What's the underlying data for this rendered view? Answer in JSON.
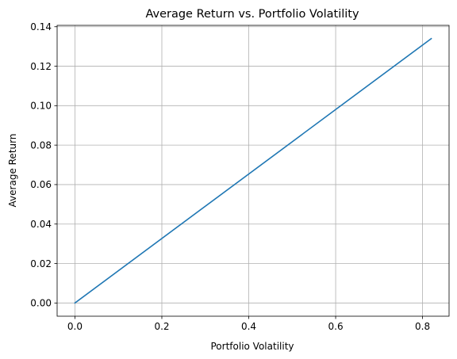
{
  "chart_data": {
    "type": "line",
    "title": "Average Return vs. Portfolio Volatility",
    "xlabel": "Portfolio Volatility",
    "ylabel": "Average Return",
    "xlim": [
      -0.041,
      0.861
    ],
    "ylim": [
      -0.0067,
      0.1407
    ],
    "xticks": [
      0.0,
      0.2,
      0.4,
      0.6,
      0.8
    ],
    "xtick_labels": [
      "0.0",
      "0.2",
      "0.4",
      "0.6",
      "0.8"
    ],
    "yticks": [
      0.0,
      0.02,
      0.04,
      0.06,
      0.08,
      0.1,
      0.12,
      0.14
    ],
    "ytick_labels": [
      "0.00",
      "0.02",
      "0.04",
      "0.06",
      "0.08",
      "0.10",
      "0.12",
      "0.14"
    ],
    "grid": true,
    "series": [
      {
        "color": "#1f77b4",
        "x": [
          0.0,
          0.82
        ],
        "y": [
          0.0,
          0.134
        ]
      }
    ]
  }
}
